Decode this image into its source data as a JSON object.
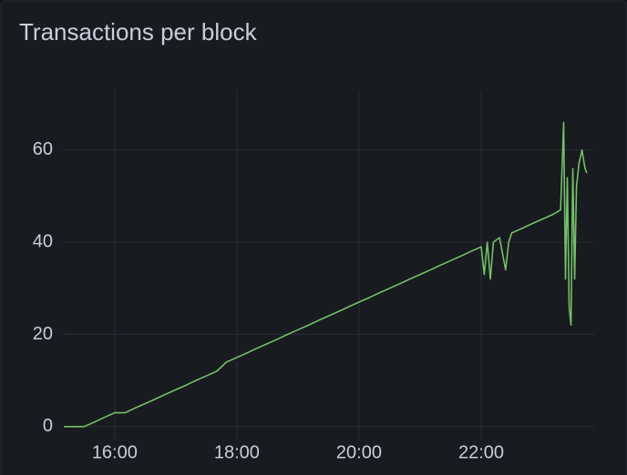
{
  "chart_data": {
    "type": "line",
    "title": "Transactions per block",
    "x": [
      15.17,
      15.33,
      15.5,
      15.67,
      15.83,
      16.0,
      16.17,
      16.33,
      16.5,
      16.67,
      16.83,
      17.0,
      17.17,
      17.33,
      17.5,
      17.67,
      17.83,
      18.0,
      18.17,
      18.33,
      18.5,
      18.67,
      18.83,
      19.0,
      19.17,
      19.33,
      19.5,
      19.67,
      19.83,
      20.0,
      20.17,
      20.33,
      20.5,
      20.67,
      20.83,
      21.0,
      21.17,
      21.33,
      21.5,
      21.67,
      21.83,
      22.0,
      22.05,
      22.1,
      22.15,
      22.2,
      22.3,
      22.4,
      22.45,
      22.5,
      22.67,
      22.83,
      23.0,
      23.17,
      23.3,
      23.35,
      23.38,
      23.41,
      23.44,
      23.47,
      23.5,
      23.53,
      23.56,
      23.6,
      23.65,
      23.7,
      23.73
    ],
    "series": [
      {
        "name": "Transactions",
        "color": "#73bf69",
        "values": [
          0,
          0,
          0,
          1,
          2,
          3,
          3,
          4,
          5,
          6,
          7,
          8,
          9,
          10,
          11,
          12,
          14,
          15,
          16,
          17,
          18,
          19,
          20,
          21,
          22,
          23,
          24,
          25,
          26,
          27,
          28,
          29,
          30,
          31,
          32,
          33,
          34,
          35,
          36,
          37,
          38,
          39,
          33,
          40,
          32,
          40,
          41,
          34,
          40,
          42,
          43,
          44,
          45,
          46,
          47,
          66,
          32,
          54,
          26,
          22,
          56,
          32,
          52,
          57,
          60,
          56,
          55
        ]
      }
    ],
    "xlim": [
      15.1667,
      23.85
    ],
    "xticks": [
      {
        "value": 16,
        "label": "16:00"
      },
      {
        "value": 18,
        "label": "18:00"
      },
      {
        "value": 20,
        "label": "20:00"
      },
      {
        "value": 22,
        "label": "22:00"
      }
    ],
    "ylim": [
      -3,
      73
    ],
    "yticks": [
      0,
      20,
      40,
      60
    ],
    "grid": true
  }
}
